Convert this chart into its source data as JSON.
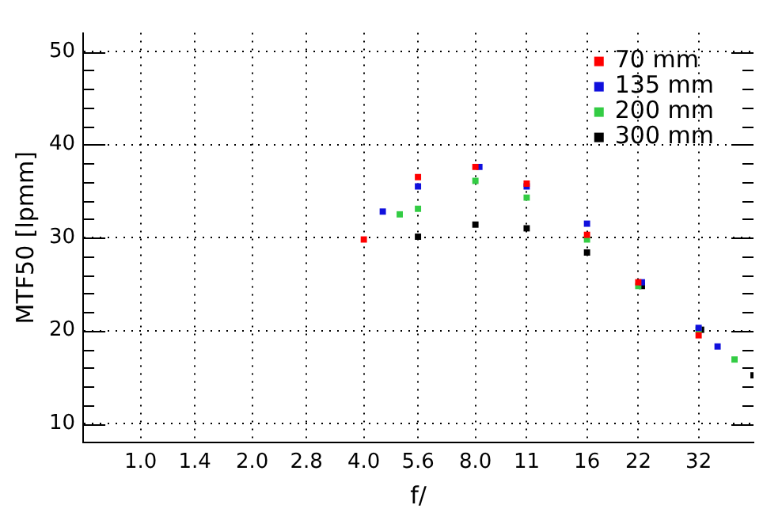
{
  "chart_data": {
    "type": "scatter",
    "xlabel": "f/",
    "ylabel": "MTF50 [lpmm]",
    "log": "x",
    "xlim": [
      0.7,
      45
    ],
    "ylim": [
      8,
      52
    ],
    "xticks": [
      {
        "value": 1,
        "label": "1.0"
      },
      {
        "value": 1.4,
        "label": "1.4"
      },
      {
        "value": 2,
        "label": "2.0"
      },
      {
        "value": 2.8,
        "label": "2.8"
      },
      {
        "value": 4,
        "label": "4.0"
      },
      {
        "value": 5.6,
        "label": "5.6"
      },
      {
        "value": 8,
        "label": "8.0"
      },
      11,
      16,
      22,
      32
    ],
    "yticks": [
      10,
      {
        "value": 12,
        "label": null
      },
      {
        "value": 14,
        "label": null
      },
      {
        "value": 16,
        "label": null
      },
      {
        "value": 18,
        "label": null
      },
      20,
      {
        "value": 22,
        "label": null
      },
      {
        "value": 24,
        "label": null
      },
      {
        "value": 26,
        "label": null
      },
      {
        "value": 28,
        "label": null
      },
      30,
      {
        "value": 32,
        "label": null
      },
      {
        "value": 34,
        "label": null
      },
      {
        "value": 36,
        "label": null
      },
      {
        "value": 38,
        "label": null
      },
      40,
      {
        "value": 42,
        "label": null
      },
      {
        "value": 44,
        "label": null
      },
      {
        "value": 46,
        "label": null
      },
      {
        "value": 48,
        "label": null
      },
      50
    ],
    "grid": true,
    "legend": "top right",
    "marker": "square",
    "series": [
      {
        "name": "70 mm",
        "color": "#ff0000",
        "x": [
          4,
          5.6,
          8,
          11,
          16,
          22,
          32
        ],
        "values": [
          29.8,
          36.5,
          37.6,
          35.8,
          30.3,
          25.2,
          19.5
        ]
      },
      {
        "name": "135 mm",
        "color": "#1010dd",
        "x": [
          4.5,
          5.6,
          8.2,
          11,
          16,
          22.5,
          32,
          36
        ],
        "values": [
          32.8,
          35.5,
          37.6,
          35.5,
          31.5,
          25.2,
          20.3,
          18.3
        ]
      },
      {
        "name": "200 mm",
        "color": "#33cc44",
        "x": [
          5,
          5.6,
          8,
          11,
          16,
          22,
          32,
          40
        ],
        "values": [
          32.5,
          33.1,
          36.1,
          34.3,
          29.8,
          24.8,
          20.1,
          16.9
        ]
      },
      {
        "name": "300 mm",
        "color": "#000000",
        "x": [
          5.6,
          8,
          11,
          16,
          22.5,
          32.5,
          45
        ],
        "values": [
          30.1,
          31.4,
          31.0,
          28.4,
          24.8,
          20.1,
          15.2
        ]
      }
    ]
  }
}
